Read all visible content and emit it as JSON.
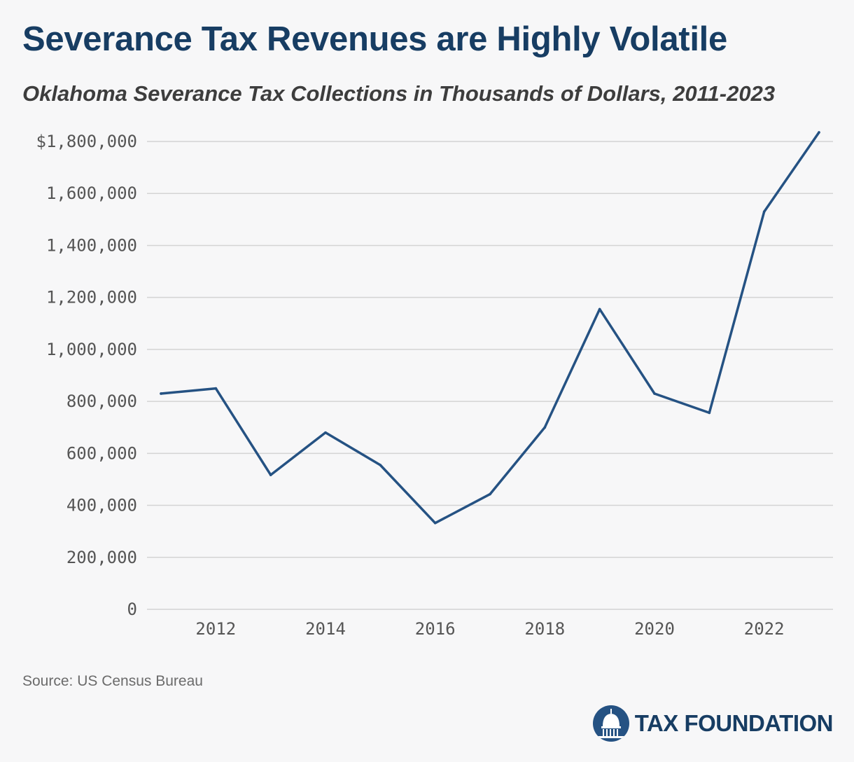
{
  "title": "Severance Tax Revenues are Highly Volatile",
  "subtitle": "Oklahoma Severance Tax Collections in Thousands of Dollars, 2011-2023",
  "source": "Source: US Census Bureau",
  "logo": {
    "text": "TAX FOUNDATION",
    "icon": "capitol-dome-icon"
  },
  "colors": {
    "line": "#255283",
    "title": "#173d63",
    "grid": "#d4d4d4",
    "background": "#f7f7f8"
  },
  "chart_data": {
    "type": "line",
    "title": "Severance Tax Revenues are Highly Volatile",
    "subtitle": "Oklahoma Severance Tax Collections in Thousands of Dollars, 2011-2023",
    "xlabel": "",
    "ylabel": "",
    "x": [
      2011,
      2012,
      2013,
      2014,
      2015,
      2016,
      2017,
      2018,
      2019,
      2020,
      2021,
      2022,
      2023
    ],
    "series": [
      {
        "values": [
          830000,
          850000,
          517000,
          680000,
          555000,
          332000,
          443000,
          700000,
          1155000,
          830000,
          756000,
          1530000,
          1835000
        ]
      }
    ],
    "ylim": [
      0,
      1800000
    ],
    "xlim": [
      2011,
      2023
    ],
    "yticks": [
      0,
      200000,
      400000,
      600000,
      800000,
      1000000,
      1200000,
      1400000,
      1600000,
      1800000
    ],
    "ytick_labels": [
      "0",
      "200,000",
      "400,000",
      "600,000",
      "800,000",
      "1,000,000",
      "1,200,000",
      "1,400,000",
      "1,600,000",
      "$1,800,000"
    ],
    "xticks": [
      2012,
      2014,
      2016,
      2018,
      2020,
      2022
    ],
    "xtick_labels": [
      "2012",
      "2014",
      "2016",
      "2018",
      "2020",
      "2022"
    ],
    "grid": true,
    "legend": "none"
  }
}
